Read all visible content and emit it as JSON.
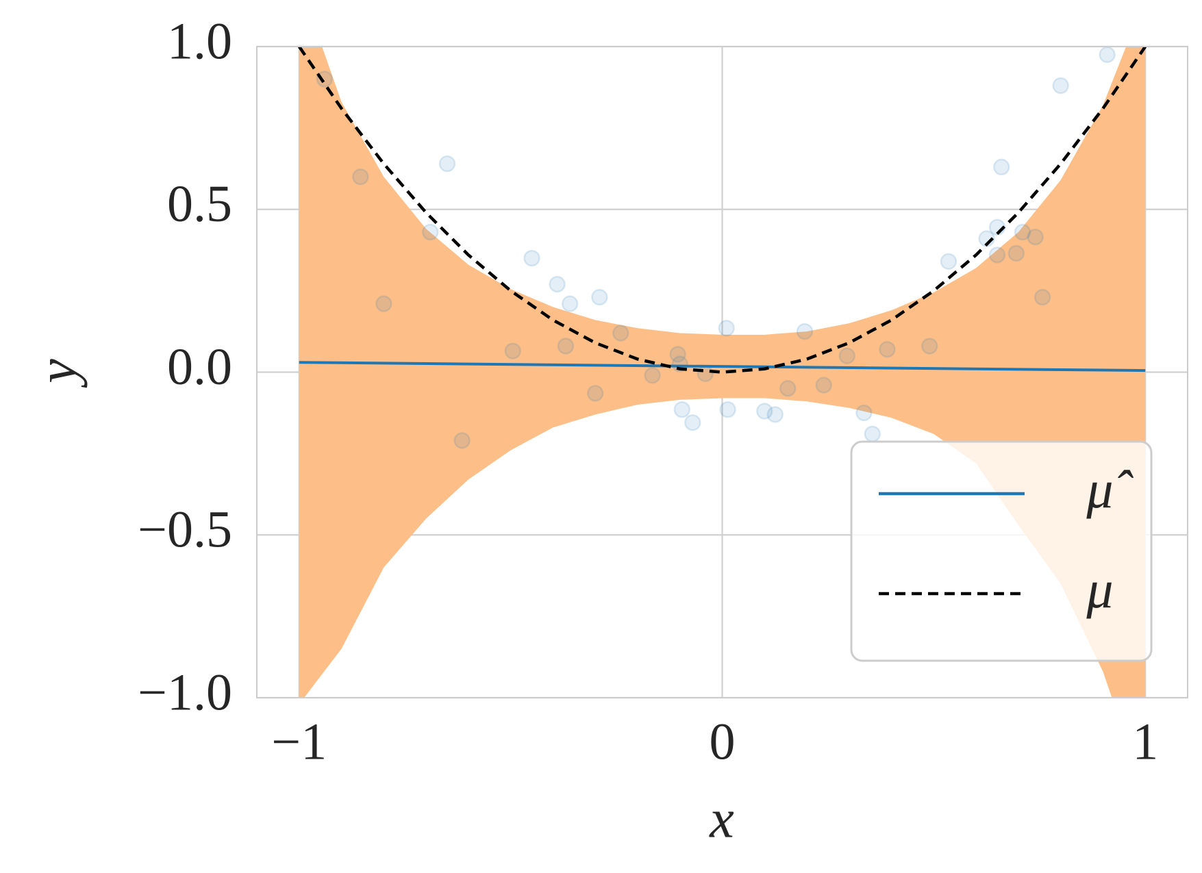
{
  "chart_data": {
    "type": "line",
    "xlabel": "x",
    "ylabel": "y",
    "xlim": [
      -1.1,
      1.1
    ],
    "ylim": [
      -1,
      1
    ],
    "xticks": [
      {
        "value": -1,
        "label": "−1"
      },
      0,
      1
    ],
    "yticks": [
      {
        "value": -1,
        "label": "−1.0"
      },
      {
        "value": -0.5,
        "label": "−0.5"
      },
      {
        "value": 0,
        "label": "0.0"
      },
      0.5,
      {
        "value": 1,
        "label": "1.0"
      }
    ],
    "grid": true,
    "legend": "lower right",
    "band": {
      "color": "#fdbf87",
      "x": [
        -1,
        -0.9,
        -0.8,
        -0.7,
        -0.6,
        -0.5,
        -0.4,
        -0.3,
        -0.2,
        -0.1,
        0,
        0.1,
        0.2,
        0.3,
        0.4,
        0.5,
        0.6,
        0.7,
        0.8,
        0.9,
        1
      ],
      "upper": [
        1.2,
        0.83,
        0.6,
        0.44,
        0.33,
        0.255,
        0.2,
        0.16,
        0.135,
        0.12,
        0.115,
        0.115,
        0.125,
        0.15,
        0.19,
        0.245,
        0.32,
        0.43,
        0.59,
        0.82,
        1.15
      ],
      "lower": [
        -1.02,
        -0.85,
        -0.6,
        -0.45,
        -0.33,
        -0.24,
        -0.17,
        -0.13,
        -0.1,
        -0.085,
        -0.08,
        -0.08,
        -0.09,
        -0.11,
        -0.14,
        -0.19,
        -0.28,
        -0.47,
        -0.65,
        -0.92,
        -1.3
      ]
    },
    "scatter": {
      "color": "#1f77b4",
      "x": [
        -0.94,
        -0.855,
        -0.65,
        -0.8,
        -0.69,
        -0.615,
        -0.495,
        -0.45,
        -0.39,
        -0.37,
        -0.36,
        -0.3,
        -0.29,
        -0.24,
        -0.165,
        -0.105,
        -0.1,
        -0.095,
        -0.07,
        -0.04,
        0.01,
        0.013,
        0.1,
        0.125,
        0.155,
        0.195,
        0.24,
        0.295,
        0.335,
        0.355,
        0.39,
        0.49,
        0.535,
        0.625,
        0.65,
        0.66,
        0.65,
        0.695,
        0.71,
        0.74,
        0.757,
        0.8,
        0.91
      ],
      "y": [
        0.9,
        0.6,
        0.64,
        0.21,
        0.43,
        -0.21,
        0.065,
        0.35,
        0.27,
        0.08,
        0.21,
        -0.065,
        0.23,
        0.12,
        -0.01,
        0.055,
        0.025,
        -0.115,
        -0.155,
        -0.005,
        0.135,
        -0.115,
        -0.12,
        -0.13,
        -0.05,
        0.125,
        -0.04,
        0.05,
        -0.125,
        -0.19,
        0.07,
        0.08,
        0.34,
        0.41,
        0.445,
        0.63,
        0.36,
        0.365,
        0.43,
        0.415,
        0.23,
        0.88,
        0.975
      ]
    },
    "series": [
      {
        "name": "μ̂",
        "color": "#1f77b4",
        "x": [
          -1,
          1
        ],
        "values": [
          0.03,
          0.005
        ]
      },
      {
        "name": "μ",
        "color": "#000000",
        "dashed": true,
        "x": [
          -1,
          -0.9,
          -0.8,
          -0.7,
          -0.6,
          -0.5,
          -0.4,
          -0.3,
          -0.2,
          -0.1,
          0,
          0.1,
          0.2,
          0.3,
          0.4,
          0.5,
          0.6,
          0.7,
          0.8,
          0.9,
          1
        ],
        "values": [
          1,
          0.81,
          0.64,
          0.49,
          0.36,
          0.25,
          0.16,
          0.09,
          0.04,
          0.01,
          0,
          0.01,
          0.04,
          0.09,
          0.16,
          0.25,
          0.36,
          0.49,
          0.64,
          0.81,
          1
        ]
      }
    ]
  }
}
